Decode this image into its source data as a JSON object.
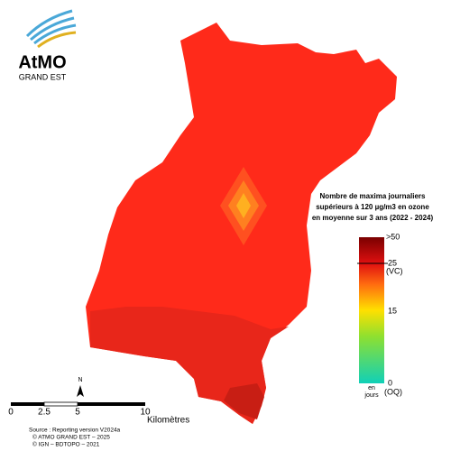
{
  "logo": {
    "name": "AtMO",
    "region": "GRAND EST"
  },
  "legend": {
    "title_lines": [
      "Nombre de maxima journaliers",
      "supérieurs à 120 µg/m3 en ozone",
      "en moyenne sur 3 ans (2022 - 2024)"
    ],
    "top": ">50",
    "vc_value": "25",
    "vc": "(VC)",
    "mid": "15",
    "zero": "0",
    "oq": "(OQ)",
    "unit_lines": [
      "en",
      "jours"
    ]
  },
  "north": "N",
  "scale_bar": {
    "ticks": [
      "0",
      "2.5",
      "5",
      "10"
    ],
    "unit": "Kilomètres"
  },
  "source_lines": [
    "Source : Reporting version V2024a",
    "© ATMO GRAND EST – 2025",
    "© IGN – BDTOPO – 2021"
  ]
}
